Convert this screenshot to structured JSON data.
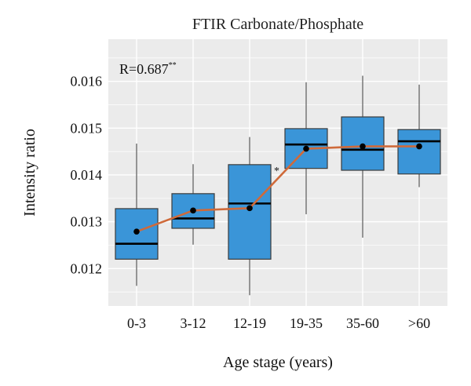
{
  "chart_data": {
    "type": "boxplot",
    "title": "FTIR Carbonate/Phosphate",
    "xlabel": "Age stage (years)",
    "ylabel": "Intensity ratio",
    "ylim": [
      0.0112,
      0.0169
    ],
    "yticks": [
      0.012,
      0.013,
      0.014,
      0.015,
      0.016
    ],
    "ytick_labels": [
      "0.012",
      "0.013",
      "0.014",
      "0.015",
      "0.016"
    ],
    "grid": true,
    "background": "light-gray",
    "box_color": "#3a95d8",
    "box_edge_color": "#3b3b3b",
    "median_color": "#000000",
    "mean_line_color": "#cf6a3a",
    "mean_marker_color": "#000000",
    "groups": [
      {
        "label": "0-3",
        "whisker_low": 0.01163,
        "q1": 0.0122,
        "median": 0.01253,
        "q3": 0.01328,
        "whisker_high": 0.01467,
        "mean": 0.01279
      },
      {
        "label": "3-12",
        "whisker_low": 0.01251,
        "q1": 0.01286,
        "median": 0.01307,
        "q3": 0.0136,
        "whisker_high": 0.01423,
        "mean": 0.01324
      },
      {
        "label": "12-19",
        "whisker_low": 0.01143,
        "q1": 0.0122,
        "median": 0.01339,
        "q3": 0.01422,
        "whisker_high": 0.01481,
        "mean": 0.01329
      },
      {
        "label": "19-35",
        "whisker_low": 0.01316,
        "q1": 0.01414,
        "median": 0.01465,
        "q3": 0.01499,
        "whisker_high": 0.01598,
        "mean": 0.01456
      },
      {
        "label": "35-60",
        "whisker_low": 0.01266,
        "q1": 0.0141,
        "median": 0.01454,
        "q3": 0.01524,
        "whisker_high": 0.01612,
        "mean": 0.01461
      },
      {
        "label": ">60",
        "whisker_low": 0.01374,
        "q1": 0.01402,
        "median": 0.01472,
        "q3": 0.01497,
        "whisker_high": 0.01593,
        "mean": 0.01461
      }
    ],
    "annotations": {
      "correlation": "R=0.687",
      "correlation_sig": "**",
      "group_marker": {
        "group": "12-19",
        "text": "*"
      }
    }
  }
}
